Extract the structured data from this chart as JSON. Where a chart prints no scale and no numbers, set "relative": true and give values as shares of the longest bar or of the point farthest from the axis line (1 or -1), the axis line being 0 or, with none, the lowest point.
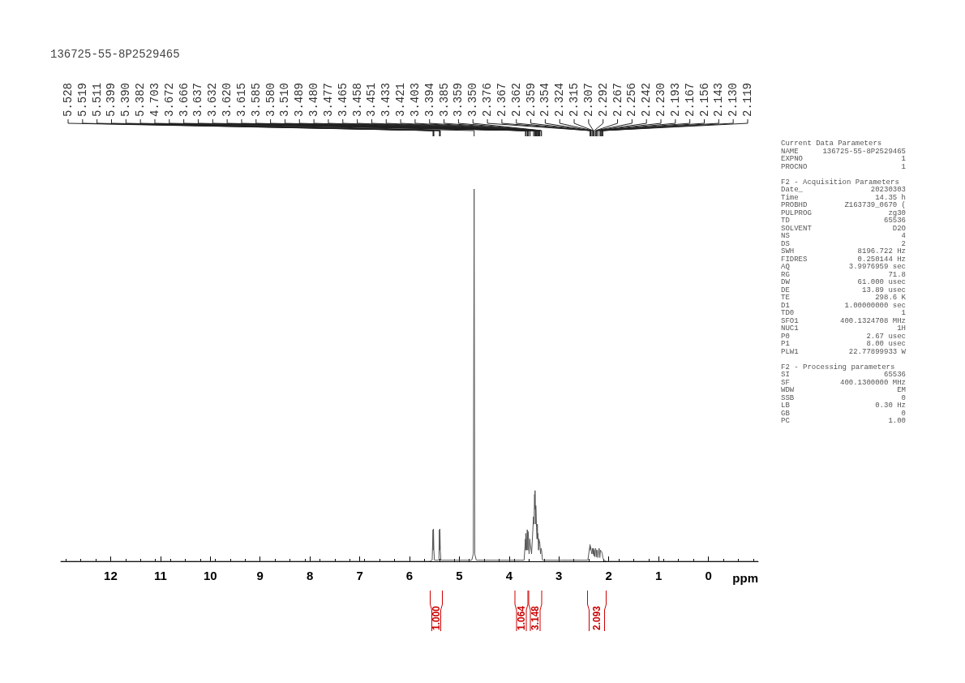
{
  "chart_data": {
    "type": "line",
    "title": "136725-55-8P2529465",
    "xlabel": "ppm",
    "relative": true,
    "color": "#555555",
    "xlim": [
      13,
      -1
    ],
    "xticks": [
      12,
      11,
      10,
      9,
      8,
      7,
      6,
      5,
      4,
      3,
      2,
      1,
      0
    ],
    "grid": false,
    "marker": "none",
    "line_style": "solid",
    "x": [
      13,
      5.6,
      5.545,
      5.528,
      5.524,
      5.519,
      5.511,
      5.5,
      5.41,
      5.399,
      5.394,
      5.39,
      5.382,
      5.37,
      4.75,
      4.72,
      4.703,
      4.69,
      4.66,
      3.7,
      3.672,
      3.669,
      3.666,
      3.65,
      3.637,
      3.632,
      3.625,
      3.62,
      3.615,
      3.6,
      3.585,
      3.58,
      3.55,
      3.51,
      3.5,
      3.489,
      3.484,
      3.48,
      3.477,
      3.47,
      3.465,
      3.458,
      3.451,
      3.44,
      3.433,
      3.427,
      3.421,
      3.41,
      3.403,
      3.394,
      3.385,
      3.37,
      3.359,
      3.35,
      3.33,
      2.42,
      2.376,
      2.37,
      2.367,
      2.362,
      2.359,
      2.354,
      2.34,
      2.324,
      2.315,
      2.307,
      2.3,
      2.292,
      2.28,
      2.267,
      2.256,
      2.25,
      2.242,
      2.23,
      2.22,
      2.193,
      2.18,
      2.167,
      2.156,
      2.143,
      2.13,
      2.119,
      2.1,
      2.05,
      -1
    ],
    "values": [
      0,
      0,
      0.003,
      0.085,
      0.03,
      0.087,
      0.03,
      0.003,
      0.003,
      0.085,
      0.03,
      0.087,
      0.03,
      0.003,
      0.003,
      0.02,
      1,
      0.02,
      0.003,
      0.003,
      0.06,
      0.03,
      0.075,
      0.03,
      0.085,
      0.08,
      0.03,
      0.08,
      0.075,
      0.02,
      0.06,
      0.05,
      0.02,
      0.12,
      0.1,
      0.18,
      0.14,
      0.19,
      0.17,
      0.1,
      0.15,
      0.13,
      0.09,
      0.06,
      0.1,
      0.06,
      0.075,
      0.03,
      0.06,
      0.055,
      0.05,
      0.02,
      0.035,
      0.03,
      0.003,
      0.003,
      0.045,
      0.03,
      0.04,
      0.038,
      0.035,
      0.03,
      0.02,
      0.035,
      0.02,
      0.035,
      0.015,
      0.03,
      0.012,
      0.035,
      0.03,
      0.012,
      0.03,
      0.03,
      0.01,
      0.035,
      0.01,
      0.03,
      0.03,
      0.025,
      0.02,
      0.01,
      0.003,
      0,
      0
    ],
    "annotations": [
      "1.000",
      "1.064",
      "3.148",
      "2.093",
      {
        "text": "5.528",
        "x": 5.528
      },
      {
        "text": "5.519",
        "x": 5.519
      },
      {
        "text": "5.511",
        "x": 5.511
      },
      {
        "text": "5.399",
        "x": 5.399
      },
      {
        "text": "5.390",
        "x": 5.39
      },
      {
        "text": "5.382",
        "x": 5.382
      },
      {
        "text": "4.703",
        "x": 4.703
      },
      {
        "text": "3.672",
        "x": 3.672
      },
      {
        "text": "3.666",
        "x": 3.666
      },
      {
        "text": "3.637",
        "x": 3.637
      },
      {
        "text": "3.632",
        "x": 3.632
      },
      {
        "text": "3.620",
        "x": 3.62
      },
      {
        "text": "3.615",
        "x": 3.615
      },
      {
        "text": "3.585",
        "x": 3.585
      },
      {
        "text": "3.580",
        "x": 3.58
      },
      {
        "text": "3.510",
        "x": 3.51
      },
      {
        "text": "3.489",
        "x": 3.489
      },
      {
        "text": "3.480",
        "x": 3.48
      },
      {
        "text": "3.477",
        "x": 3.477
      },
      {
        "text": "3.465",
        "x": 3.465
      },
      {
        "text": "3.458",
        "x": 3.458
      },
      {
        "text": "3.451",
        "x": 3.451
      },
      {
        "text": "3.433",
        "x": 3.433
      },
      {
        "text": "3.421",
        "x": 3.421
      },
      {
        "text": "3.403",
        "x": 3.403
      },
      {
        "text": "3.394",
        "x": 3.394
      },
      {
        "text": "3.385",
        "x": 3.385
      },
      {
        "text": "3.359",
        "x": 3.359
      },
      {
        "text": "3.350",
        "x": 3.35
      },
      {
        "text": "2.376",
        "x": 2.376
      },
      {
        "text": "2.367",
        "x": 2.367
      },
      {
        "text": "2.362",
        "x": 2.362
      },
      {
        "text": "2.359",
        "x": 2.359
      },
      {
        "text": "2.354",
        "x": 2.354
      },
      {
        "text": "2.324",
        "x": 2.324
      },
      {
        "text": "2.315",
        "x": 2.315
      },
      {
        "text": "2.307",
        "x": 2.307
      },
      {
        "text": "2.292",
        "x": 2.292
      },
      {
        "text": "2.267",
        "x": 2.267
      },
      {
        "text": "2.256",
        "x": 2.256
      },
      {
        "text": "2.242",
        "x": 2.242
      },
      {
        "text": "2.230",
        "x": 2.23
      },
      {
        "text": "2.193",
        "x": 2.193
      },
      {
        "text": "2.167",
        "x": 2.167
      },
      {
        "text": "2.156",
        "x": 2.156
      },
      {
        "text": "2.143",
        "x": 2.143
      },
      {
        "text": "2.130",
        "x": 2.13
      },
      {
        "text": "2.119",
        "x": 2.119
      },
      "Current Data Parameters\nNAME\t136725-55-8P2529465\nEXPNO\t1\nPROCNO\t1",
      "F2 - Acquisition Parameters\nDate_\t20230303\nTime\t14.35 h\nPROBHD\tZ163739_0670 (\nPULPROG\tzg30\nTD\t65536\nSOLVENT\tD2O\nNS\t4\nDS\t2\nSWH\t8196.722 Hz\nFIDRES\t0.250144 Hz\nAQ\t3.9976959 sec\nRG\t71.8\nDW\t61.000 usec\nDE\t13.89 usec\nTE\t298.6 K\nD1\t1.00000000 sec\nTD0\t1\nSFO1\t400.1324708 MHz\nNUC1\t1H\nP0\t2.67 usec\nP1\t8.00 usec\nPLW1\t22.77899933 W",
      "F2 - Processing parameters\nSI\t65536\nSF\t400.1300000 MHz\nWDW\tEM\nSSB\t0\nLB\t0.30 Hz\nGB\t0\nPC\t1.00"
    ]
  }
}
